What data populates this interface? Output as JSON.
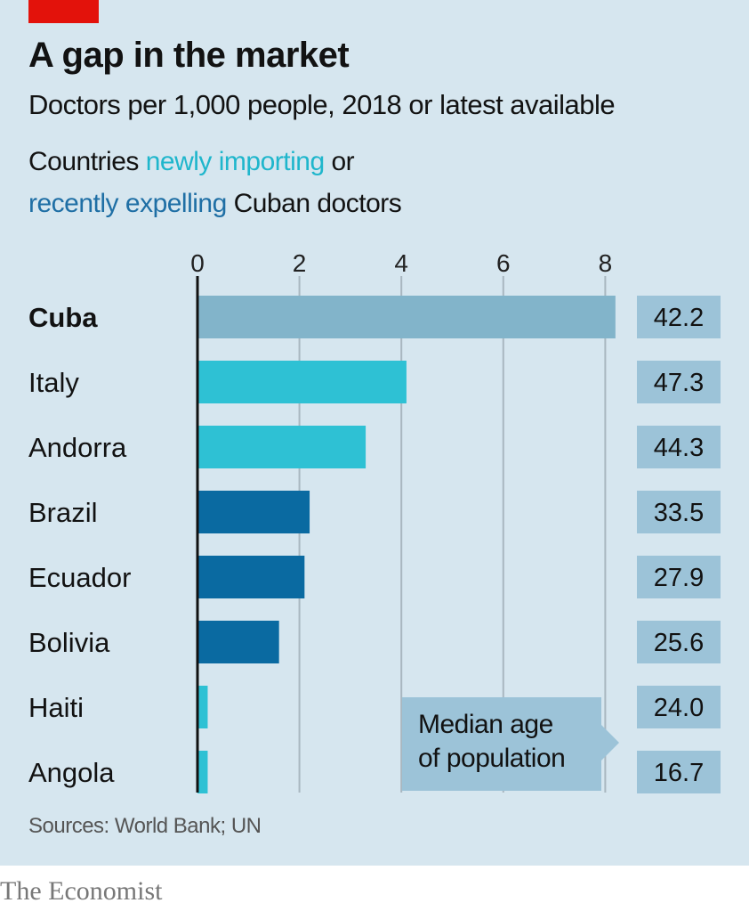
{
  "header": {
    "title": "A gap in the market",
    "subtitle": "Doctors per 1,000 people, 2018 or latest available",
    "legend_prefix": "Countries ",
    "legend_import": "newly importing",
    "legend_mid": " or",
    "legend_expel": "recently expelling",
    "legend_suffix": " Cuban doctors"
  },
  "colors": {
    "background": "#d6e6ef",
    "cuba": "#82b4ca",
    "newly_importing": "#2ec1d4",
    "recently_expelling": "#0a6aa1",
    "value_box": "#9cc3d8",
    "accent_red": "#e3120b"
  },
  "callout": {
    "line1": "Median age",
    "line2": "of population"
  },
  "footer": {
    "source": "Sources: World Bank; UN",
    "brand": "The Economist"
  },
  "chart_data": {
    "type": "bar",
    "orientation": "horizontal",
    "title": "A gap in the market",
    "subtitle": "Doctors per 1,000 people, 2018 or latest available",
    "xlabel": "",
    "ylabel": "",
    "xlim": [
      0,
      8.5
    ],
    "xticks": [
      0,
      2,
      4,
      6,
      8
    ],
    "tick_labels": [
      "0",
      "2",
      "4",
      "6",
      "8"
    ],
    "grid": true,
    "legend_placement": "top-left (inline text)",
    "categories": [
      "Cuba",
      "Italy",
      "Andorra",
      "Brazil",
      "Ecuador",
      "Bolivia",
      "Haiti",
      "Angola"
    ],
    "values": [
      8.2,
      4.1,
      3.3,
      2.2,
      2.1,
      1.6,
      0.2,
      0.2
    ],
    "groups": [
      "cuba",
      "newly_importing",
      "newly_importing",
      "recently_expelling",
      "recently_expelling",
      "recently_expelling",
      "newly_importing",
      "newly_importing"
    ],
    "bold_categories": [
      "Cuba"
    ],
    "secondary_label": "Median age of population",
    "median_age": [
      "42.2",
      "47.3",
      "44.3",
      "33.5",
      "27.9",
      "25.6",
      "24.0",
      "16.7"
    ]
  }
}
